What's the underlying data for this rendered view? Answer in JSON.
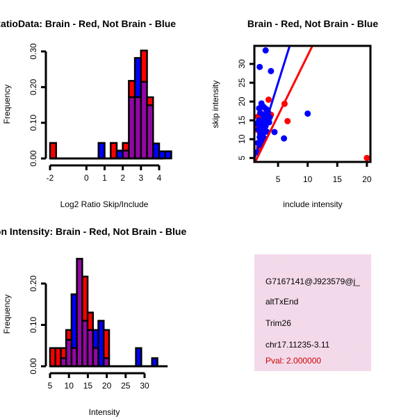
{
  "colors": {
    "brain": "#ff0000",
    "not_brain": "#0000ff",
    "overlap": "#9900aa",
    "info_bg": "#f8d8f0",
    "pval": "#cc0000"
  },
  "chart_data": [
    {
      "type": "bar",
      "title": "RatioData: Brain - Red, Not Brain - Blue",
      "xlabel": "Log2 Ratio Skip/Include",
      "ylabel": "Frequency",
      "xlim": [
        -2,
        4
      ],
      "ylim": [
        0,
        0.3
      ],
      "xticks": [
        "-2",
        "0",
        "1",
        "2",
        "3",
        "4"
      ],
      "xtick_values": [
        -2,
        0,
        1,
        2,
        3,
        4
      ],
      "yticks": [
        "0.00",
        "0.10",
        "0.20",
        "0.30"
      ],
      "ytick_values": [
        0,
        0.1,
        0.2,
        0.3
      ],
      "bin_start": -2,
      "bin_width": 0.3333,
      "series": [
        {
          "name": "Brain",
          "values": [
            0.0435,
            0,
            0,
            0,
            0,
            0,
            0,
            0,
            0,
            0,
            0.0435,
            0,
            0.0435,
            0.2175,
            0.1716,
            0.3026,
            0.1716,
            0,
            0
          ]
        },
        {
          "name": "Not Brain",
          "values": [
            0,
            0,
            0,
            0,
            0,
            0,
            0,
            0,
            0.0435,
            0,
            0,
            0.022,
            0.022,
            0.1716,
            0.2817,
            0.2148,
            0.149,
            0.042,
            0.02,
            0.02
          ]
        }
      ]
    },
    {
      "type": "scatter",
      "title": "Brain - Red, Not Brain - Blue",
      "xlabel": "include intensity",
      "ylabel": "skip intensity",
      "xlim": [
        1,
        20.6
      ],
      "ylim": [
        3.95,
        34.8
      ],
      "xticks": [
        "5",
        "10",
        "15",
        "20"
      ],
      "xtick_values": [
        5,
        10,
        15,
        20
      ],
      "yticks": [
        "5",
        "10",
        "15",
        "20",
        "25",
        "30"
      ],
      "ytick_values": [
        5,
        10,
        15,
        20,
        25,
        30
      ],
      "series": [
        {
          "name": "Brain",
          "points": [
            [
              3.4,
              20.5
            ],
            [
              6.1,
              19.4
            ],
            [
              6.6,
              14.8
            ],
            [
              20,
              5
            ],
            [
              3.8,
              16.5
            ],
            [
              1.5,
              12.5
            ],
            [
              1.2,
              14
            ],
            [
              2.0,
              11
            ],
            [
              1.8,
              7.8
            ],
            [
              2.5,
              15.5
            ],
            [
              2.2,
              13
            ],
            [
              3.0,
              17
            ],
            [
              1.6,
              16
            ],
            [
              2.8,
              12
            ]
          ],
          "fit": [
            [
              1.15,
              4.0
            ],
            [
              10.8,
              34.8
            ]
          ]
        },
        {
          "name": "Not Brain",
          "points": [
            [
              2.9,
              33.6
            ],
            [
              1.9,
              29.2
            ],
            [
              3.8,
              28.1
            ],
            [
              10,
              16.8
            ],
            [
              6.0,
              10.2
            ],
            [
              4.4,
              11.9
            ],
            [
              2.2,
              19.5
            ],
            [
              2.6,
              18.5
            ],
            [
              3.0,
              18
            ],
            [
              2.0,
              17
            ],
            [
              2.4,
              16.5
            ],
            [
              3.2,
              16
            ],
            [
              1.8,
              15
            ],
            [
              2.7,
              15.2
            ],
            [
              3.5,
              14.5
            ],
            [
              1.5,
              14.2
            ],
            [
              2.1,
              13.8
            ],
            [
              2.9,
              13.5
            ],
            [
              2.3,
              13
            ],
            [
              1.7,
              12.6
            ],
            [
              2.6,
              12.2
            ],
            [
              3.1,
              12
            ],
            [
              2.0,
              11.5
            ],
            [
              2.4,
              11
            ],
            [
              1.9,
              10.5
            ],
            [
              2.7,
              10.2
            ],
            [
              2.2,
              9.5
            ],
            [
              1.6,
              9
            ],
            [
              2.0,
              8.5
            ],
            [
              1.4,
              6.5
            ],
            [
              3.3,
              17.2
            ],
            [
              2.5,
              14
            ],
            [
              3.6,
              15.8
            ],
            [
              1.8,
              18.2
            ]
          ],
          "fit": [
            [
              1.0,
              4.8
            ],
            [
              6.96,
              34.8
            ]
          ]
        }
      ]
    },
    {
      "type": "bar",
      "title": "Exon Intensity: Brain - Red, Not Brain - Blue",
      "xlabel": "Intensity",
      "ylabel": "Frequency",
      "xlim": [
        5,
        35
      ],
      "ylim": [
        0,
        0.25
      ],
      "xticks": [
        "5",
        "10",
        "15",
        "20",
        "25",
        "30"
      ],
      "xtick_values": [
        5,
        10,
        15,
        20,
        25,
        30
      ],
      "yticks": [
        "0.00",
        "0.10",
        "0.20"
      ],
      "ytick_values": [
        0,
        0.1,
        0.2
      ],
      "bin_start": 5,
      "bin_width": 1.42,
      "series": [
        {
          "name": "Brain",
          "values": [
            0.044,
            0.044,
            0.044,
            0.0877,
            0.044,
            0.26,
            0.217,
            0.13,
            0.044,
            0,
            0.0877,
            0,
            0,
            0,
            0,
            0,
            0,
            0,
            0,
            0
          ]
        },
        {
          "name": "Not Brain",
          "values": [
            0,
            0,
            0.0196,
            0.064,
            0.174,
            0.26,
            0.11,
            0.0877,
            0.0877,
            0.11,
            0.0196,
            0,
            0,
            0,
            0,
            0,
            0.044,
            0,
            0,
            0.0196
          ]
        }
      ]
    }
  ],
  "info": {
    "id": "G7167141@J923579@j_",
    "type": "altTxEnd",
    "gene": "Trim26",
    "location": "chr17.11235-3.11",
    "pval": "Pval: 2.000000"
  }
}
